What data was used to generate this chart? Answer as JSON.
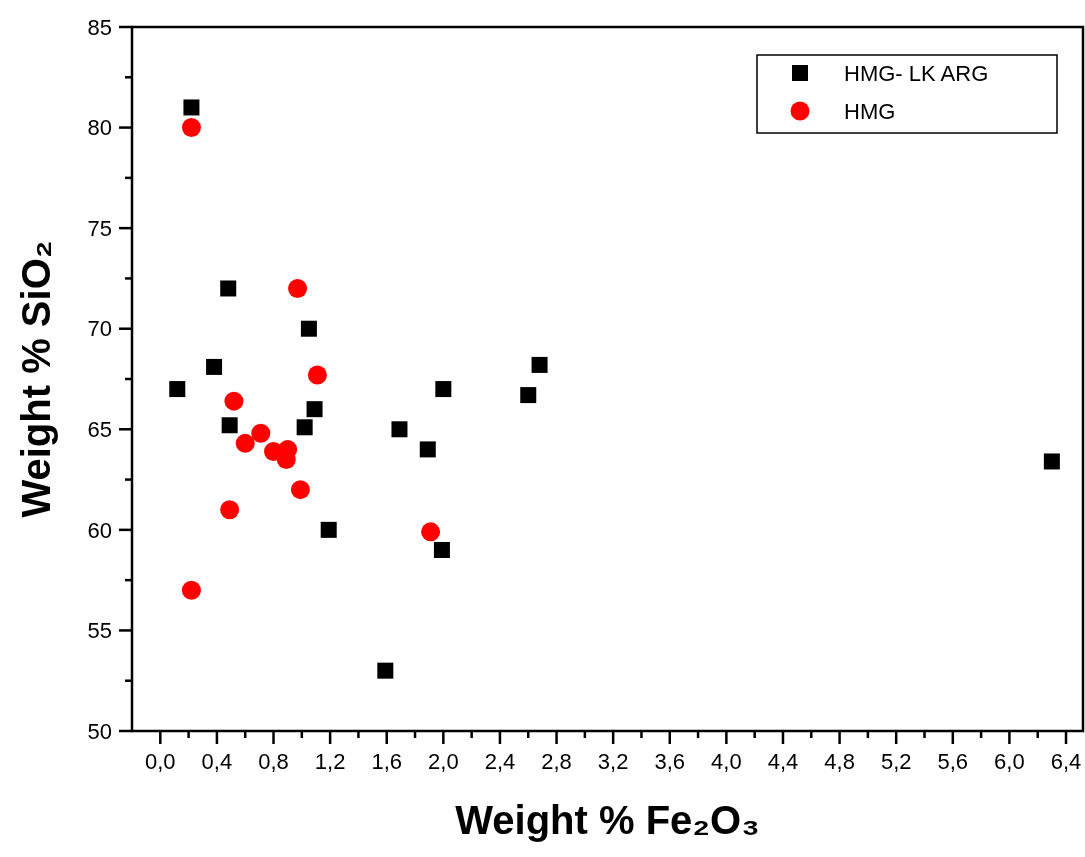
{
  "chart_data": {
    "type": "scatter",
    "xlabel": "Weight % Fe₂O₃",
    "ylabel": "Weight % SiO₂",
    "xlim": [
      -0.2,
      6.52
    ],
    "ylim": [
      50,
      85
    ],
    "xticks": [
      {
        "value": 0,
        "label": "0,0"
      },
      {
        "value": 0.2,
        "label": null
      },
      {
        "value": 0.4,
        "label": "0,4"
      },
      {
        "value": 0.6,
        "label": null
      },
      {
        "value": 0.8,
        "label": "0,8"
      },
      {
        "value": 1.0,
        "label": null
      },
      {
        "value": 1.2,
        "label": "1,2"
      },
      {
        "value": 1.4,
        "label": null
      },
      {
        "value": 1.6,
        "label": "1,6"
      },
      {
        "value": 1.8,
        "label": null
      },
      {
        "value": 2.0,
        "label": "2,0"
      },
      {
        "value": 2.2,
        "label": null
      },
      {
        "value": 2.4,
        "label": "2,4"
      },
      {
        "value": 2.6,
        "label": null
      },
      {
        "value": 2.8,
        "label": "2,8"
      },
      {
        "value": 3.0,
        "label": null
      },
      {
        "value": 3.2,
        "label": "3,2"
      },
      {
        "value": 3.4,
        "label": null
      },
      {
        "value": 3.6,
        "label": "3,6"
      },
      {
        "value": 3.8,
        "label": null
      },
      {
        "value": 4.0,
        "label": "4,0"
      },
      {
        "value": 4.2,
        "label": null
      },
      {
        "value": 4.4,
        "label": "4,4"
      },
      {
        "value": 4.6,
        "label": null
      },
      {
        "value": 4.8,
        "label": "4,8"
      },
      {
        "value": 5.0,
        "label": null
      },
      {
        "value": 5.2,
        "label": "5,2"
      },
      {
        "value": 5.4,
        "label": null
      },
      {
        "value": 5.6,
        "label": "5,6"
      },
      {
        "value": 5.8,
        "label": null
      },
      {
        "value": 6.0,
        "label": "6,0"
      },
      {
        "value": 6.2,
        "label": null
      },
      {
        "value": 6.4,
        "label": "6,4"
      }
    ],
    "yticks": [
      50,
      {
        "value": 52.5,
        "label": null
      },
      55,
      {
        "value": 57.5,
        "label": null
      },
      60,
      {
        "value": 62.5,
        "label": null
      },
      65,
      {
        "value": 67.5,
        "label": null
      },
      70,
      {
        "value": 72.5,
        "label": null
      },
      75,
      {
        "value": 77.5,
        "label": null
      },
      80,
      {
        "value": 82.5,
        "label": null
      },
      85
    ],
    "grid": false,
    "legend": "top right",
    "series": [
      {
        "name": "HMG- LK ARG",
        "color": "#000000",
        "marker": "square",
        "x": [
          0.22,
          0.48,
          1.05,
          0.38,
          0.12,
          2.0,
          1.09,
          0.49,
          1.02,
          1.69,
          1.89,
          1.19,
          1.99,
          1.59,
          2.68,
          2.6,
          6.3
        ],
        "values": [
          81,
          72,
          70,
          68.1,
          67,
          67,
          66,
          65.2,
          65.1,
          65,
          64,
          60,
          59,
          53,
          68.2,
          66.7,
          63.4
        ]
      },
      {
        "name": "HMG",
        "color": "#ff0000",
        "marker": "circle",
        "x": [
          0.22,
          0.97,
          1.11,
          0.52,
          0.71,
          0.6,
          0.8,
          0.9,
          0.89,
          0.99,
          0.49,
          1.91,
          0.22
        ],
        "values": [
          80,
          72,
          67.7,
          66.4,
          64.8,
          64.3,
          63.9,
          64,
          63.5,
          62,
          61,
          59.9,
          57
        ]
      }
    ]
  }
}
